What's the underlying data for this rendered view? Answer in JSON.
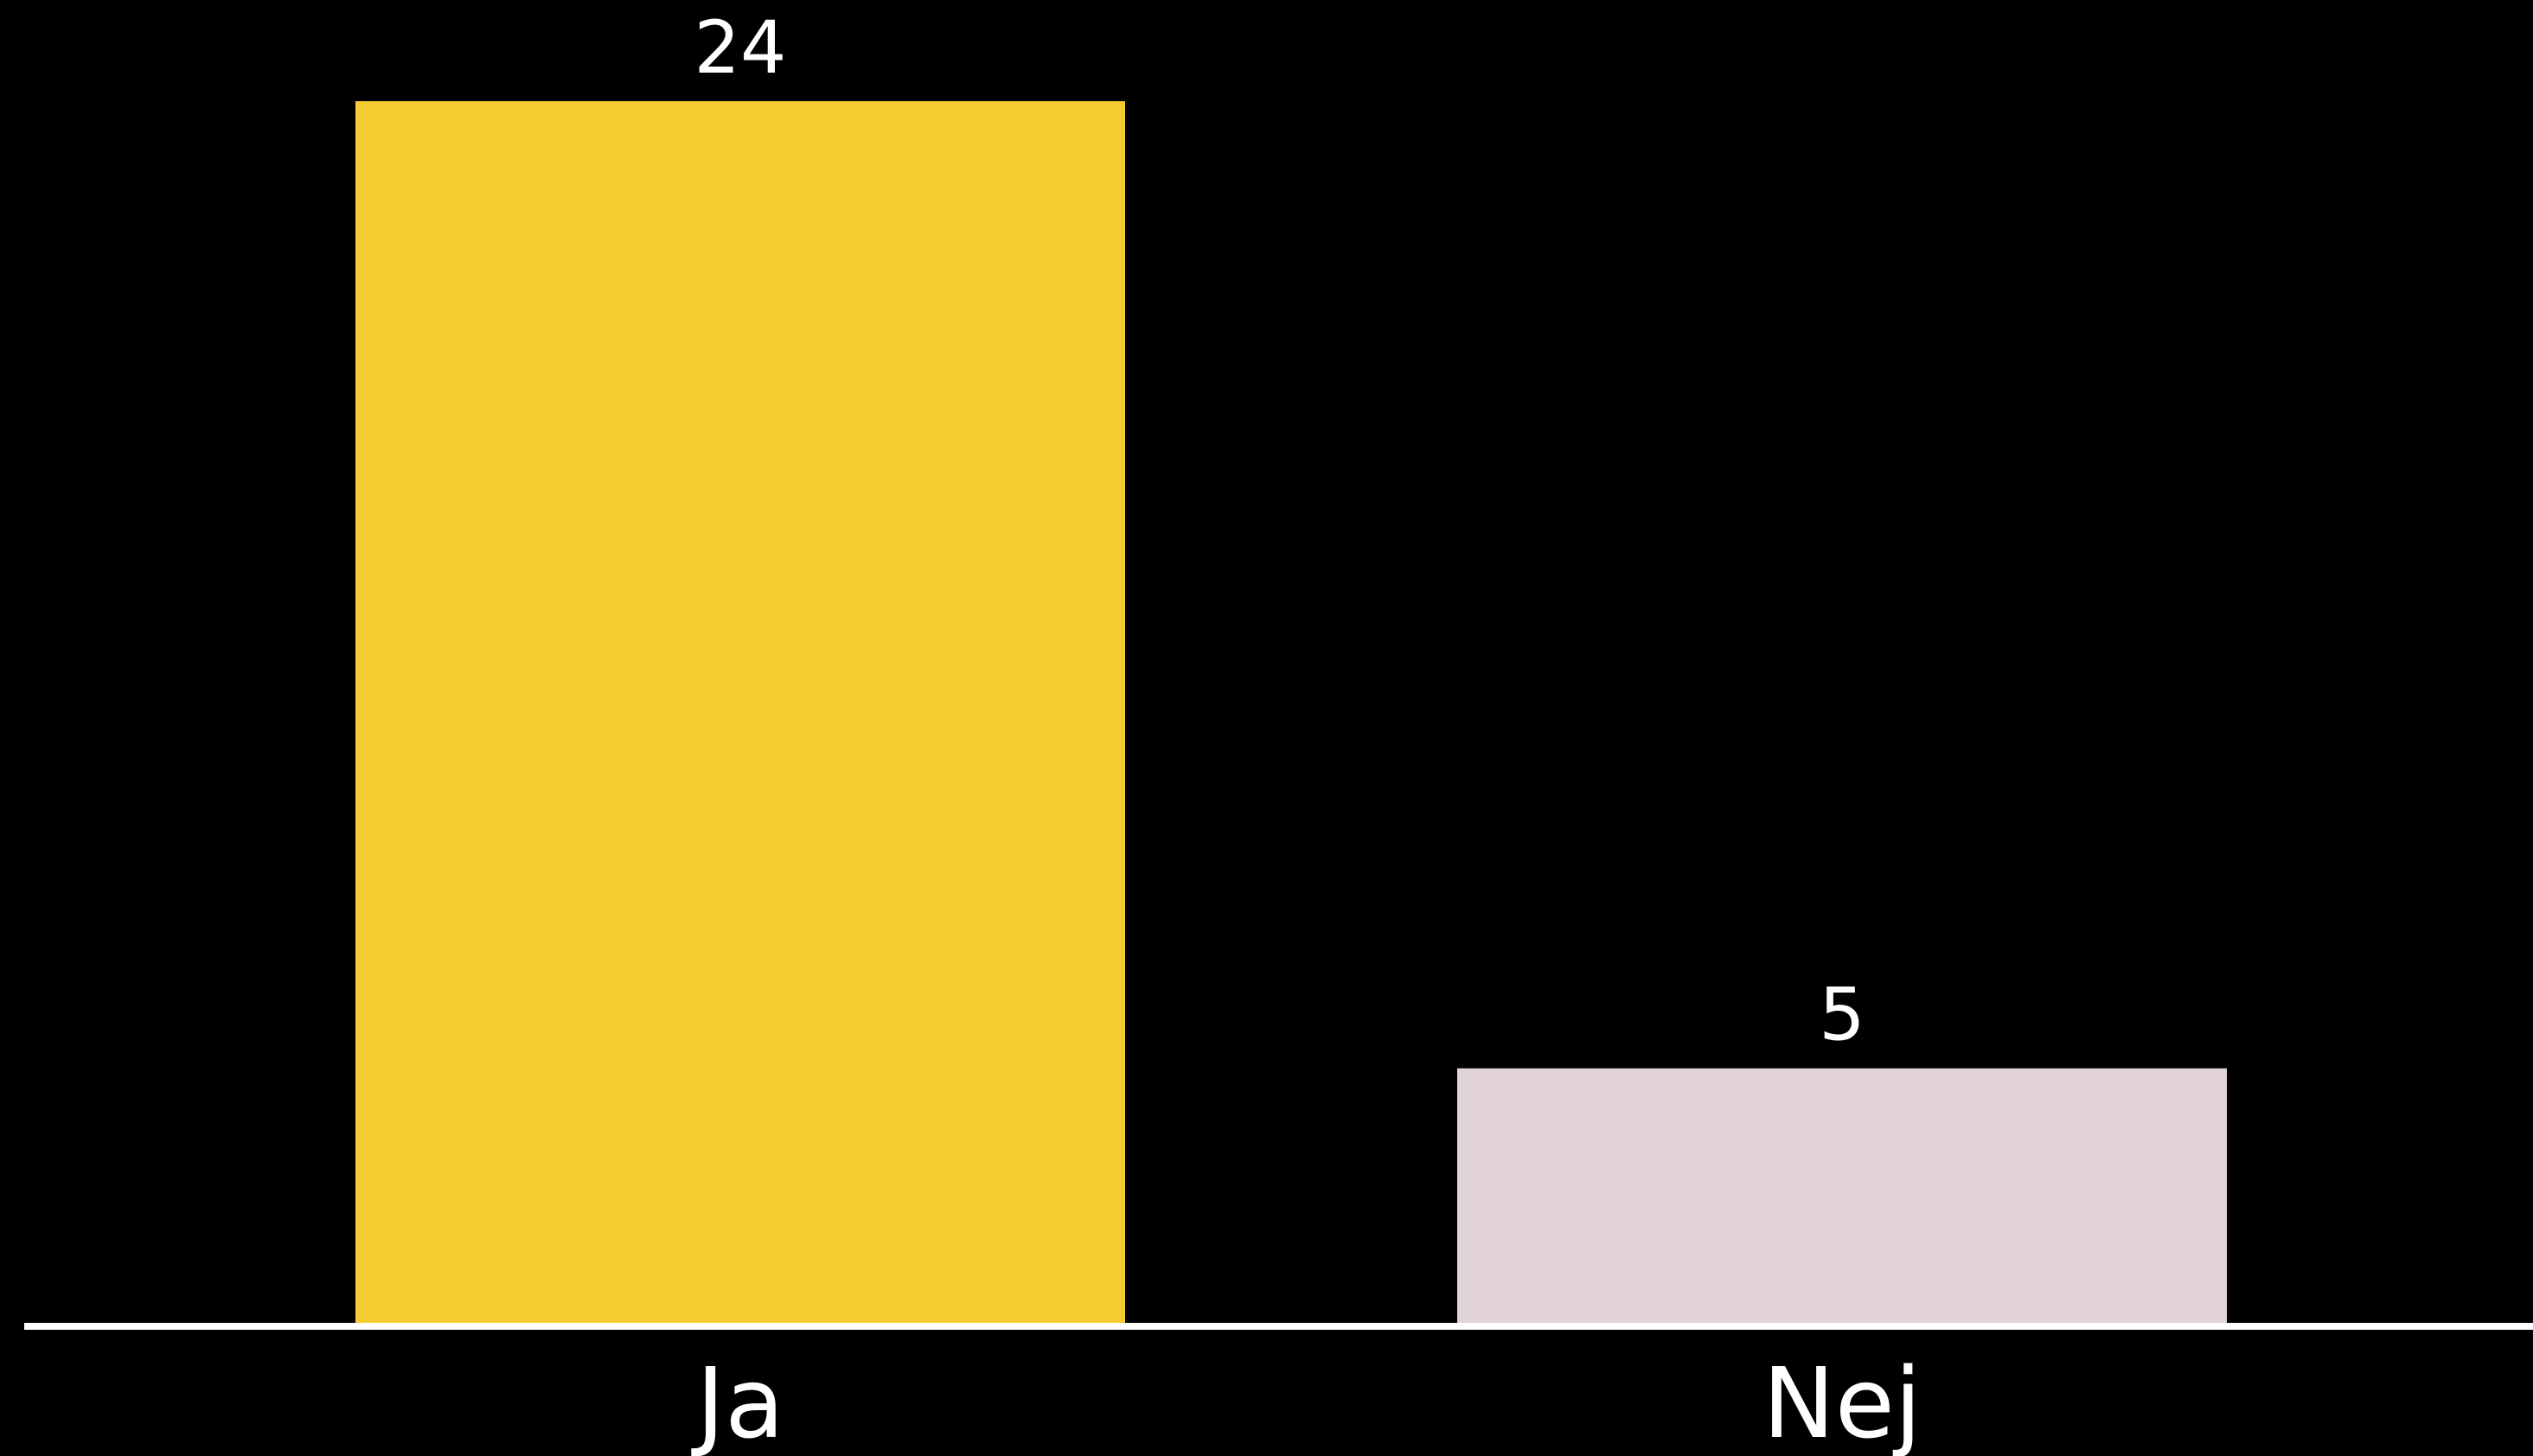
{
  "chart_data": {
    "type": "bar",
    "categories": [
      "Ja",
      "Nej"
    ],
    "values": [
      24,
      5
    ],
    "data_labels": [
      "24",
      "5"
    ],
    "bar_colors": [
      "#F4CC32",
      "#E2D3D6"
    ],
    "background_color": "#000000",
    "text_color": "#FFFFFF",
    "axis_color": "#FFFFFF",
    "title": "",
    "xlabel": "",
    "ylabel": "",
    "ylim": [
      0,
      24
    ],
    "grid": false,
    "legend": "none"
  }
}
